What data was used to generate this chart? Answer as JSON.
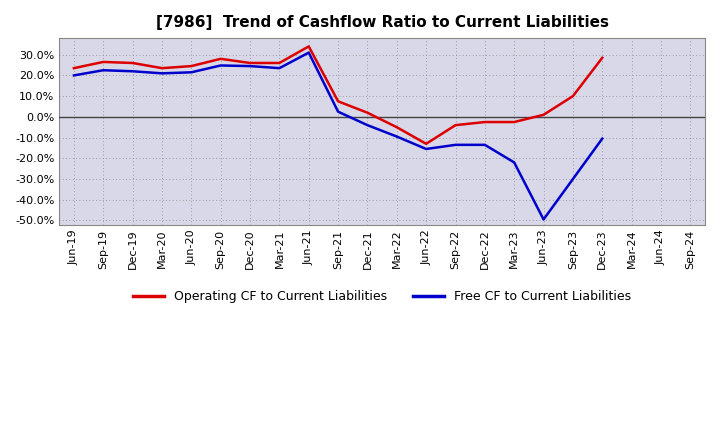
{
  "title": "[7986]  Trend of Cashflow Ratio to Current Liabilities",
  "x_labels": [
    "Jun-19",
    "Sep-19",
    "Dec-19",
    "Mar-20",
    "Jun-20",
    "Sep-20",
    "Dec-20",
    "Mar-21",
    "Jun-21",
    "Sep-21",
    "Dec-21",
    "Mar-22",
    "Jun-22",
    "Sep-22",
    "Dec-22",
    "Mar-23",
    "Jun-23",
    "Sep-23",
    "Dec-23",
    "Mar-24",
    "Jun-24",
    "Sep-24"
  ],
  "operating_cf": [
    0.235,
    0.265,
    0.26,
    0.235,
    0.245,
    0.28,
    0.26,
    0.26,
    0.34,
    0.075,
    0.02,
    -0.05,
    -0.13,
    -0.04,
    -0.025,
    -0.025,
    0.01,
    0.1,
    0.285,
    null,
    null,
    null
  ],
  "free_cf": [
    0.2,
    0.225,
    0.22,
    0.21,
    0.215,
    0.248,
    0.245,
    0.235,
    0.31,
    0.025,
    -0.04,
    -0.095,
    -0.155,
    -0.135,
    -0.135,
    -0.22,
    -0.495,
    -0.3,
    -0.105,
    null,
    null,
    null
  ],
  "ylim_min": -0.52,
  "ylim_max": 0.38,
  "yticks": [
    -0.5,
    -0.4,
    -0.3,
    -0.2,
    -0.1,
    0.0,
    0.1,
    0.2,
    0.3
  ],
  "operating_color": "#dd0000",
  "free_color": "#0000cc",
  "grid_color": "#888888",
  "bg_color": "#ffffff",
  "plot_bg_color": "#d8d8e8",
  "zero_line_color": "#444444",
  "legend_op": "Operating CF to Current Liabilities",
  "legend_free": "Free CF to Current Liabilities"
}
